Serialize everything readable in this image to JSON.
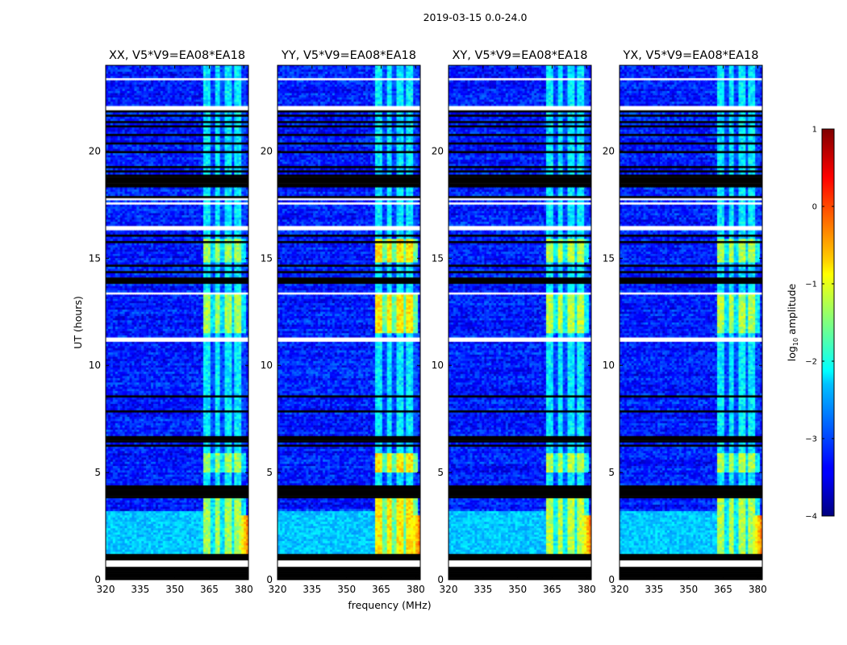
{
  "figure_title": "2019-03-15 0.0-24.0",
  "colors": {
    "background": "#ffffff",
    "blank_row": "#ffffff",
    "flagged_row": "#000000"
  },
  "chart_data": {
    "type": "heatmap",
    "title": "2019-03-15 0.0-24.0",
    "xlabel": "frequency (MHz)",
    "ylabel": "UT (hours)",
    "xlim": [
      320,
      382
    ],
    "ylim": [
      0,
      24
    ],
    "x_ticks": [
      320,
      335,
      350,
      365,
      380
    ],
    "y_ticks": [
      0,
      5,
      10,
      15,
      20
    ],
    "panels": [
      {
        "title": "XX, V5*V9=EA08*EA18",
        "polarization": "XX",
        "band_strength": 0.9
      },
      {
        "title": "YY, V5*V9=EA08*EA18",
        "polarization": "YY",
        "band_strength": 1.15
      },
      {
        "title": "XY, V5*V9=EA08*EA18",
        "polarization": "XY",
        "band_strength": 0.95
      },
      {
        "title": "YX, V5*V9=EA08*EA18",
        "polarization": "YX",
        "band_strength": 0.92
      }
    ],
    "colorbar": {
      "label": "log10 amplitude",
      "label_main": "log",
      "label_sub": "10",
      "label_rest": " amplitude",
      "range": [
        -4,
        1
      ],
      "ticks": [
        "1",
        "0",
        "−1",
        "−2",
        "−3",
        "−4"
      ],
      "tick_values": [
        1,
        0,
        -1,
        -2,
        -3,
        -4
      ],
      "colormap": "jet"
    },
    "rfi_band_mhz": [
      362,
      380.5
    ],
    "rfi_subband_edges_mhz": [
      362,
      366.5,
      370.7,
      374.9,
      379.1,
      380.5
    ],
    "edge_rfi_mhz": [
      378,
      382
    ],
    "edge_rfi_ut_hours": [
      1.2,
      3.0
    ],
    "bright_band_ut_hours": [
      [
        1.2,
        4.0
      ],
      [
        5.0,
        5.9
      ],
      [
        11.5,
        13.3
      ],
      [
        14.8,
        15.9
      ]
    ],
    "flagged_ut_hours": [
      [
        0.0,
        0.45
      ],
      [
        0.5,
        0.55
      ],
      [
        0.85,
        1.15
      ],
      [
        3.8,
        3.95
      ],
      [
        4.0,
        4.35
      ],
      [
        5.95,
        6.05
      ],
      [
        6.15,
        6.3
      ],
      [
        6.35,
        6.45
      ],
      [
        6.55,
        6.65
      ],
      [
        7.8,
        7.9
      ],
      [
        8.5,
        8.6
      ],
      [
        11.05,
        11.1
      ],
      [
        13.65,
        13.75
      ],
      [
        13.85,
        14.05
      ],
      [
        14.35,
        14.45
      ],
      [
        14.65,
        14.75
      ],
      [
        15.75,
        15.85
      ],
      [
        16.05,
        16.1
      ],
      [
        17.8,
        17.9
      ],
      [
        18.3,
        18.9
      ],
      [
        19.0,
        19.1
      ],
      [
        19.2,
        19.3
      ],
      [
        19.9,
        20.0
      ],
      [
        20.35,
        20.45
      ],
      [
        20.7,
        20.8
      ],
      [
        21.1,
        21.2
      ],
      [
        21.35,
        21.45
      ],
      [
        21.6,
        21.7
      ],
      [
        21.8,
        21.9
      ]
    ],
    "blank_ut_hours": [
      [
        0.45,
        0.5
      ],
      [
        0.55,
        0.85
      ],
      [
        3.95,
        4.0
      ],
      [
        11.1,
        11.3
      ],
      [
        13.35,
        13.4
      ],
      [
        13.9,
        13.95
      ],
      [
        15.05,
        15.15
      ],
      [
        16.3,
        16.5
      ],
      [
        17.5,
        17.6
      ],
      [
        17.7,
        17.8
      ],
      [
        21.9,
        22.0
      ],
      [
        22.0,
        22.1
      ],
      [
        22.5,
        22.55
      ],
      [
        23.35,
        23.4
      ]
    ]
  }
}
